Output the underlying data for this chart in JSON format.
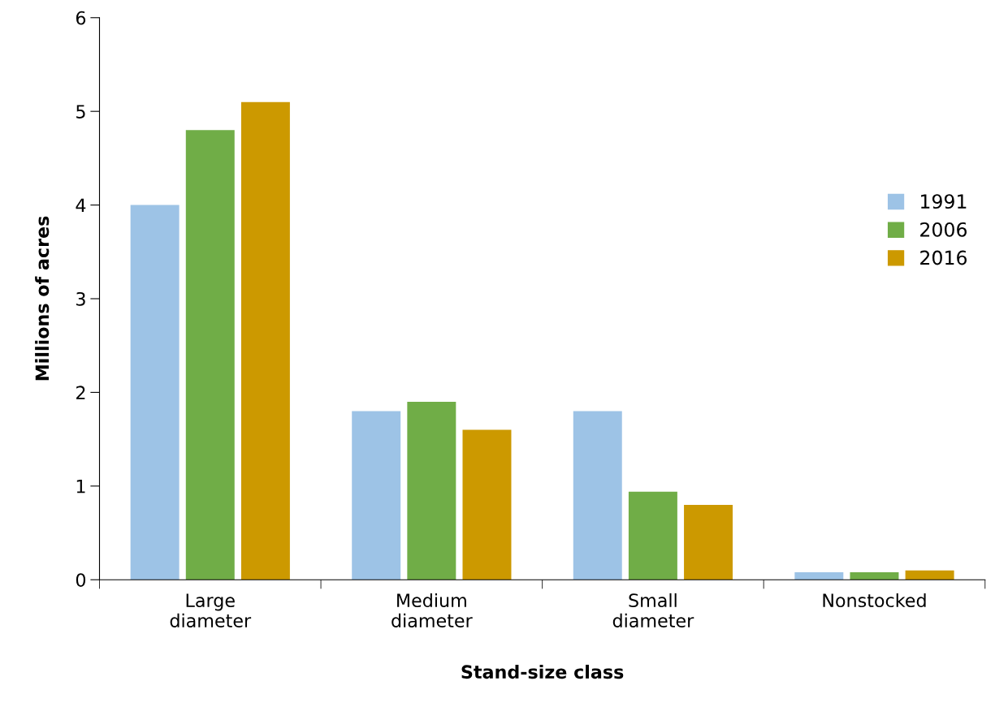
{
  "chart_data": {
    "type": "bar",
    "xlabel": "Stand-size class",
    "ylabel": "Millions of acres",
    "categories": [
      "Large\ndiameter",
      "Medium\ndiameter",
      "Small\ndiameter",
      "Nonstocked"
    ],
    "series": [
      {
        "name": "1991",
        "color": "#9dc3e6",
        "values": [
          4.0,
          1.8,
          1.8,
          0.08
        ]
      },
      {
        "name": "2006",
        "color": "#70ad47",
        "values": [
          4.8,
          1.9,
          0.94,
          0.08
        ]
      },
      {
        "name": "2016",
        "color": "#cc9900",
        "values": [
          5.1,
          1.6,
          0.8,
          0.1
        ]
      }
    ],
    "ylim": [
      0,
      6
    ],
    "yticks": [
      0,
      1,
      2,
      3,
      4,
      5,
      6
    ],
    "grid": false,
    "legend": "right"
  }
}
